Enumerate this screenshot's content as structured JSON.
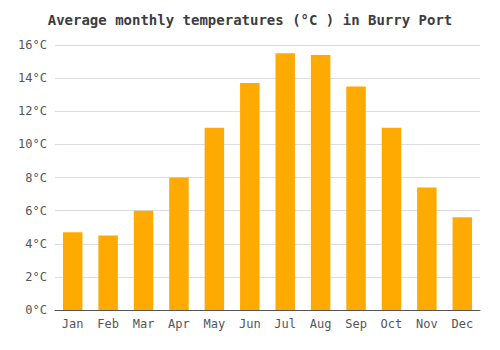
{
  "chart_data": {
    "type": "bar",
    "title": "Average monthly temperatures (°C ) in Burry Port",
    "categories": [
      "Jan",
      "Feb",
      "Mar",
      "Apr",
      "May",
      "Jun",
      "Jul",
      "Aug",
      "Sep",
      "Oct",
      "Nov",
      "Dec"
    ],
    "values": [
      4.7,
      4.5,
      6.0,
      8.0,
      11.0,
      13.7,
      15.5,
      15.4,
      13.5,
      11.0,
      7.4,
      5.6
    ],
    "color": "#FFAA00",
    "ylim": [
      0,
      16
    ],
    "yticks": [
      {
        "value": 0,
        "label": "0°C"
      },
      {
        "value": 2,
        "label": "2°C"
      },
      {
        "value": 4,
        "label": "4°C"
      },
      {
        "value": 6,
        "label": "6°C"
      },
      {
        "value": 8,
        "label": "8°C"
      },
      {
        "value": 10,
        "label": "10°C"
      },
      {
        "value": 12,
        "label": "12°C"
      },
      {
        "value": 14,
        "label": "14°C"
      },
      {
        "value": 16,
        "label": "16°C"
      }
    ],
    "grid": true
  }
}
